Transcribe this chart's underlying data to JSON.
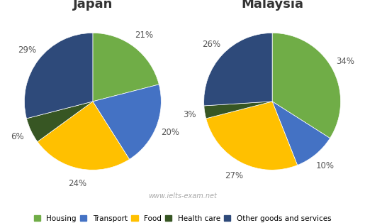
{
  "japan": {
    "title": "Japan",
    "values": [
      21,
      20,
      24,
      6,
      29
    ],
    "colors": [
      "#70ad47",
      "#4472c4",
      "#ffc000",
      "#375623",
      "#2e4a7a"
    ],
    "startangle": 90,
    "pct_distances": [
      1.22,
      1.22,
      1.22,
      1.22,
      1.22
    ]
  },
  "malaysia": {
    "title": "Malaysia",
    "values": [
      34,
      10,
      27,
      3,
      26
    ],
    "colors": [
      "#70ad47",
      "#4472c4",
      "#ffc000",
      "#375623",
      "#2e4a7a"
    ],
    "startangle": 90,
    "pct_distances": [
      1.22,
      1.22,
      1.22,
      1.22,
      1.22
    ]
  },
  "legend_labels": [
    "Housing",
    "Transport",
    "Food",
    "Health care",
    "Other goods and services"
  ],
  "legend_colors": [
    "#70ad47",
    "#4472c4",
    "#ffc000",
    "#375623",
    "#2e4a7a"
  ],
  "watermark": "www.ielts-exam.net",
  "watermark_color": "#aaaaaa",
  "background_color": "#ffffff",
  "title_fontsize": 13,
  "pct_fontsize": 8.5,
  "legend_fontsize": 7.5
}
